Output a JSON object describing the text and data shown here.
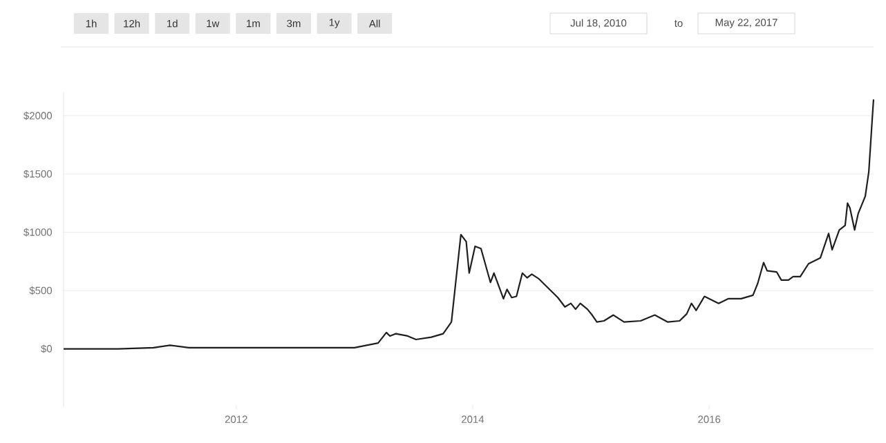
{
  "chart_data": {
    "type": "line",
    "annotations": [
      "1h",
      "12h",
      "1d",
      "1w",
      "1m",
      "3m",
      "1y",
      "All",
      "Jul 18, 2010",
      "to",
      "May 22, 2017"
    ],
    "x": [
      2010.54,
      2011.0,
      2011.3,
      2011.44,
      2011.6,
      2012.0,
      2012.5,
      2013.0,
      2013.2,
      2013.27,
      2013.3,
      2013.35,
      2013.45,
      2013.52,
      2013.65,
      2013.75,
      2013.82,
      2013.9,
      2013.945,
      2013.97,
      2014.02,
      2014.07,
      2014.15,
      2014.18,
      2014.26,
      2014.29,
      2014.33,
      2014.37,
      2014.42,
      2014.46,
      2014.5,
      2014.56,
      2014.64,
      2014.72,
      2014.78,
      2014.83,
      2014.87,
      2014.91,
      2014.97,
      2015.01,
      2015.05,
      2015.11,
      2015.19,
      2015.28,
      2015.42,
      2015.54,
      2015.65,
      2015.75,
      2015.81,
      2015.85,
      2015.89,
      2015.96,
      2016.0,
      2016.08,
      2016.16,
      2016.27,
      2016.37,
      2016.41,
      2016.46,
      2016.49,
      2016.57,
      2016.61,
      2016.67,
      2016.71,
      2016.77,
      2016.84,
      2016.94,
      2017.01,
      2017.04,
      2017.1,
      2017.15,
      2017.17,
      2017.19,
      2017.23,
      2017.26,
      2017.32,
      2017.35,
      2017.38,
      2017.39
    ],
    "series": [
      {
        "color": "#1e1e1e",
        "values": [
          0,
          0,
          10,
          30,
          10,
          10,
          10,
          10,
          50,
          140,
          110,
          130,
          110,
          80,
          100,
          130,
          230,
          980,
          920,
          650,
          880,
          860,
          570,
          650,
          430,
          510,
          440,
          450,
          650,
          610,
          640,
          600,
          520,
          440,
          360,
          390,
          340,
          390,
          340,
          290,
          230,
          240,
          290,
          230,
          240,
          290,
          230,
          240,
          300,
          390,
          330,
          450,
          430,
          390,
          430,
          430,
          460,
          560,
          740,
          670,
          660,
          590,
          590,
          620,
          620,
          730,
          780,
          990,
          850,
          1020,
          1060,
          1250,
          1210,
          1020,
          1160,
          1310,
          1520,
          1990,
          2140
        ]
      }
    ],
    "xlim": [
      2010.54,
      2017.39
    ],
    "xticks": [
      2012,
      2014,
      2016
    ],
    "ylim": [
      -500,
      2200
    ],
    "yticks": [
      {
        "value": 0,
        "label": "$0"
      },
      {
        "value": 500,
        "label": "$500"
      },
      {
        "value": 1000,
        "label": "$1000"
      },
      {
        "value": 1500,
        "label": "$1500"
      },
      {
        "value": 2000,
        "label": "$2000"
      }
    ],
    "grid": "y",
    "marker": "none",
    "line_style": "solid"
  }
}
